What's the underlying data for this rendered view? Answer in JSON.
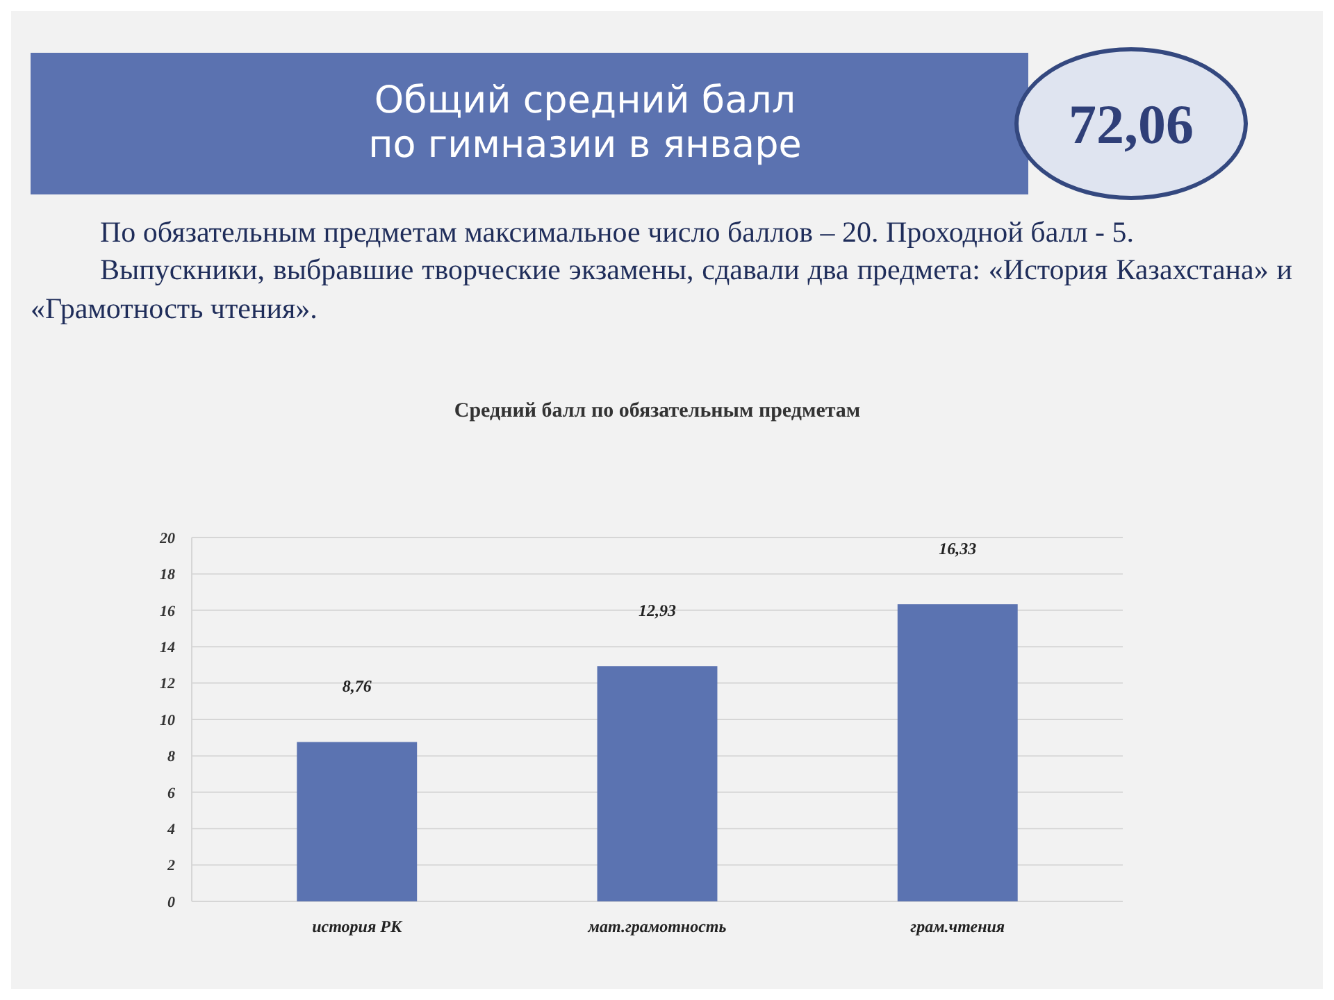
{
  "chart_data": {
    "type": "bar",
    "title": "Общий средний балл\nпо гимназии в январе",
    "subtitle": "Средний балл по обязательным предметам",
    "annotations": [
      "72,06",
      "По обязательным предметам максимальное число баллов – 20. Проходной балл - 5.",
      "Выпускники, выбравшие творческие экзамены, сдавали два предмета: «История Казахстана» и «Грамотность чтения»."
    ],
    "categories": [
      "история РК",
      "мат.грамотность",
      "грам.чтения"
    ],
    "values": [
      8.76,
      12.93,
      16.33
    ],
    "value_labels": [
      "8,76",
      "12,93",
      "16,33"
    ],
    "color": "#5b73b1",
    "ylim": [
      0,
      20
    ],
    "yticks": [
      0,
      2,
      4,
      6,
      8,
      10,
      12,
      14,
      16,
      18,
      20
    ],
    "grid": "y"
  }
}
